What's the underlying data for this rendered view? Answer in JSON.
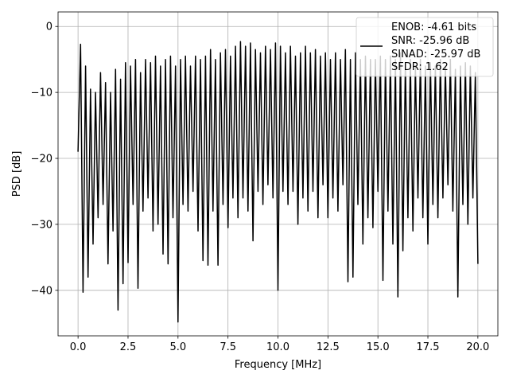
{
  "chart_data": {
    "type": "line",
    "title": "",
    "xlabel": "Frequency [MHz]",
    "ylabel": "PSD [dB]",
    "xlim": [
      -1.0,
      21.0
    ],
    "ylim": [
      -46.9,
      2.2
    ],
    "grid": true,
    "legend_placement": "top-right",
    "x_ticks": [
      0,
      2.5,
      5,
      7.5,
      10,
      12.5,
      15,
      17.5,
      20
    ],
    "x_tick_labels": [
      "0.0",
      "2.5",
      "5.0",
      "7.5",
      "10.0",
      "12.5",
      "15.0",
      "17.5",
      "20.0"
    ],
    "y_ticks": [
      0,
      -10,
      -20,
      -30,
      -40
    ],
    "y_tick_labels": [
      "0",
      "−10",
      "−20",
      "−30",
      "−40"
    ],
    "legend_lines": [
      "ENOB: -4.61 bits",
      "SNR: -25.96 dB",
      "SINAD: -25.97 dB",
      "SFDR: 1.62"
    ],
    "series": [
      {
        "color": "#000000",
        "x": [
          0,
          0.125,
          0.25,
          0.375,
          0.5,
          0.625,
          0.75,
          0.875,
          1,
          1.125,
          1.25,
          1.375,
          1.5,
          1.625,
          1.75,
          1.875,
          2,
          2.125,
          2.25,
          2.375,
          2.5,
          2.625,
          2.75,
          2.875,
          3,
          3.125,
          3.25,
          3.375,
          3.5,
          3.625,
          3.75,
          3.875,
          4,
          4.125,
          4.25,
          4.375,
          4.5,
          4.625,
          4.75,
          4.875,
          5,
          5.125,
          5.25,
          5.375,
          5.5,
          5.625,
          5.75,
          5.875,
          6,
          6.125,
          6.25,
          6.375,
          6.5,
          6.625,
          6.75,
          6.875,
          7,
          7.125,
          7.25,
          7.375,
          7.5,
          7.625,
          7.75,
          7.875,
          8,
          8.125,
          8.25,
          8.375,
          8.5,
          8.625,
          8.75,
          8.875,
          9,
          9.125,
          9.25,
          9.375,
          9.5,
          9.625,
          9.75,
          9.875,
          10,
          10.125,
          10.25,
          10.375,
          10.5,
          10.625,
          10.75,
          10.875,
          11,
          11.125,
          11.25,
          11.375,
          11.5,
          11.625,
          11.75,
          11.875,
          12,
          12.125,
          12.25,
          12.375,
          12.5,
          12.625,
          12.75,
          12.875,
          13,
          13.125,
          13.25,
          13.375,
          13.5,
          13.625,
          13.75,
          13.875,
          14,
          14.125,
          14.25,
          14.375,
          14.5,
          14.625,
          14.75,
          14.875,
          15,
          15.125,
          15.25,
          15.375,
          15.5,
          15.625,
          15.75,
          15.875,
          16,
          16.125,
          16.25,
          16.375,
          16.5,
          16.625,
          16.75,
          16.875,
          17,
          17.125,
          17.25,
          17.375,
          17.5,
          17.625,
          17.75,
          17.875,
          18,
          18.125,
          18.25,
          18.375,
          18.5,
          18.625,
          18.75,
          18.875,
          19,
          19.125,
          19.25,
          19.375,
          19.5,
          19.625,
          19.75,
          19.875,
          20
        ],
        "y": [
          -19,
          -2.7,
          -40.3,
          -6,
          -38,
          -9.5,
          -33,
          -10,
          -29,
          -7,
          -27,
          -8.5,
          -36,
          -10,
          -31,
          -6.5,
          -43,
          -8,
          -39,
          -5.5,
          -35.8,
          -6,
          -27,
          -5,
          -39.7,
          -7,
          -28,
          -5,
          -26,
          -5.5,
          -31,
          -4.5,
          -30,
          -6,
          -34.5,
          -5,
          -36,
          -4.5,
          -29,
          -6,
          -44.8,
          -5,
          -27,
          -4.5,
          -28,
          -6,
          -25,
          -4.5,
          -31,
          -5,
          -35.5,
          -4.5,
          -36.2,
          -3.5,
          -28,
          -5,
          -36.2,
          -4,
          -27,
          -3.5,
          -30.5,
          -4.5,
          -26,
          -3,
          -29,
          -2.3,
          -26,
          -3,
          -28,
          -2.5,
          -32.5,
          -3.5,
          -25,
          -4,
          -27,
          -3,
          -24,
          -3.5,
          -26,
          -2.5,
          -40,
          -3,
          -25,
          -4,
          -27,
          -3,
          -25,
          -4.5,
          -30,
          -4,
          -26,
          -3,
          -28,
          -4,
          -25,
          -3.5,
          -29,
          -4.5,
          -24,
          -4,
          -29,
          -5,
          -26,
          -4,
          -28,
          -5,
          -24,
          -3.5,
          -38.7,
          -5,
          -38,
          -4,
          -27,
          -5,
          -33,
          -4.5,
          -29,
          -5,
          -30.5,
          -5,
          -25,
          -4.5,
          -38.5,
          -5,
          -28,
          -4.5,
          -33,
          -5,
          -41,
          -4,
          -34,
          -5.5,
          -29,
          -5,
          -31,
          -6,
          -26,
          -5,
          -29,
          -6,
          -33,
          -5.5,
          -27,
          -6,
          -29,
          -5,
          -26,
          -6,
          -24,
          -5,
          -28,
          -6.5,
          -41,
          -6,
          -27,
          -5.5,
          -30,
          -6,
          -26,
          -7,
          -36
        ]
      }
    ]
  }
}
